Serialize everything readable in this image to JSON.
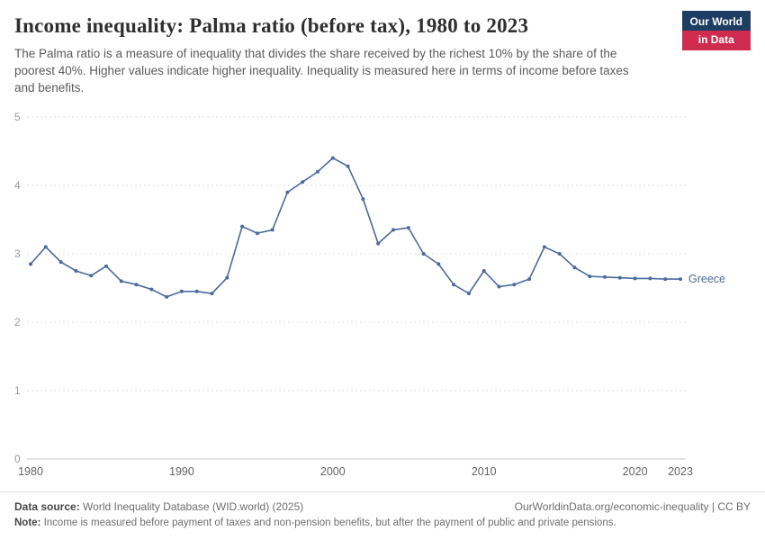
{
  "header": {
    "logo_line1": "Our World",
    "logo_line2": "in Data",
    "title": "Income inequality: Palma ratio (before tax), 1980 to 2023",
    "subtitle": "The Palma ratio is a measure of inequality that divides the share received by the richest 10% by the share of the poorest 40%. Higher values indicate higher inequality. Inequality is measured here in terms of income before taxes and benefits."
  },
  "chart_data": {
    "type": "line",
    "title": "Income inequality: Palma ratio (before tax), 1980 to 2023",
    "xlabel": "",
    "ylabel": "",
    "x_range": [
      1980,
      2023
    ],
    "ylim": [
      0,
      5
    ],
    "y_ticks": [
      0,
      1,
      2,
      3,
      4,
      5
    ],
    "x_ticks": [
      1980,
      1990,
      2000,
      2010,
      2020,
      2023
    ],
    "grid": "dashed-horizontal",
    "legend_position": "end-of-line",
    "x": [
      1980,
      1981,
      1982,
      1983,
      1984,
      1985,
      1986,
      1987,
      1988,
      1989,
      1990,
      1991,
      1992,
      1993,
      1994,
      1995,
      1996,
      1997,
      1998,
      1999,
      2000,
      2001,
      2002,
      2003,
      2004,
      2005,
      2006,
      2007,
      2008,
      2009,
      2010,
      2011,
      2012,
      2013,
      2014,
      2015,
      2016,
      2017,
      2018,
      2019,
      2020,
      2021,
      2022,
      2023
    ],
    "series": [
      {
        "name": "Greece",
        "color": "#4c6a9c",
        "values": [
          2.85,
          3.1,
          2.88,
          2.75,
          2.68,
          2.82,
          2.6,
          2.55,
          2.48,
          2.37,
          2.45,
          2.45,
          2.42,
          2.65,
          3.4,
          3.3,
          3.35,
          3.9,
          4.05,
          4.2,
          4.4,
          4.28,
          3.8,
          3.15,
          3.35,
          3.38,
          3.0,
          2.85,
          2.55,
          2.42,
          2.75,
          2.52,
          2.55,
          2.63,
          3.1,
          3.0,
          2.8,
          2.67,
          2.66,
          2.65,
          2.64,
          2.64,
          2.63,
          2.63
        ]
      }
    ],
    "colors": {
      "gridline": "#dcdcdc",
      "baseline": "#c8c8c8",
      "ytick_text": "#9a9a9a",
      "xtick_text": "#636363"
    }
  },
  "footer": {
    "datasource_label": "Data source:",
    "datasource_value": " World Inequality Database (WID.world) (2025)",
    "url_text": "OurWorldinData.org/economic-inequality | CC BY",
    "note_label": "Note:",
    "note_value": " Income is measured before payment of taxes and non-pension benefits, but after the payment of public and private pensions."
  }
}
